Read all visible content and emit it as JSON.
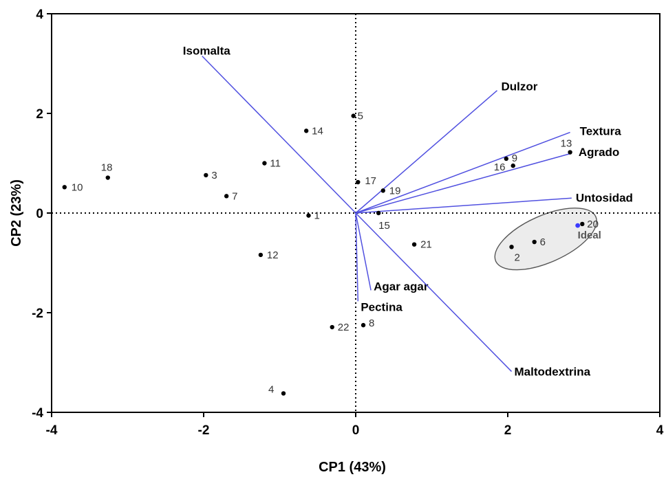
{
  "chart_data": {
    "type": "scatter",
    "subtype": "biplot",
    "title": "",
    "xlabel": "CP1 (43%)",
    "ylabel": "CP2 (23%)",
    "xlim": [
      -4,
      4
    ],
    "ylim": [
      -4,
      4
    ],
    "xticks": [
      -4,
      -2,
      0,
      2,
      4
    ],
    "yticks": [
      -4,
      -2,
      0,
      2,
      4
    ],
    "grid": false,
    "zero_lines": "dotted",
    "vector_color": "#5050e0",
    "point_color": "#000000",
    "ideal_color": "#3a3aff",
    "ellipse_fill": "#ececec",
    "points": [
      {
        "label": "1",
        "x": -0.62,
        "y": -0.05
      },
      {
        "label": "2",
        "x": 2.05,
        "y": -0.68
      },
      {
        "label": "3",
        "x": -1.97,
        "y": 0.76
      },
      {
        "label": "4",
        "x": -0.95,
        "y": -3.62
      },
      {
        "label": "5",
        "x": -0.03,
        "y": 1.95
      },
      {
        "label": "6",
        "x": 2.35,
        "y": -0.58
      },
      {
        "label": "7",
        "x": -1.7,
        "y": 0.34
      },
      {
        "label": "8",
        "x": 0.1,
        "y": -2.25
      },
      {
        "label": "9",
        "x": 1.98,
        "y": 1.09
      },
      {
        "label": "10",
        "x": -3.83,
        "y": 0.52
      },
      {
        "label": "11",
        "x": -1.2,
        "y": 1.0
      },
      {
        "label": "12",
        "x": -1.25,
        "y": -0.84
      },
      {
        "label": "13",
        "x": 2.82,
        "y": 1.22
      },
      {
        "label": "14",
        "x": -0.65,
        "y": 1.65
      },
      {
        "label": "15",
        "x": 0.3,
        "y": 0.0
      },
      {
        "label": "16",
        "x": 2.07,
        "y": 0.95
      },
      {
        "label": "17",
        "x": 0.03,
        "y": 0.62
      },
      {
        "label": "18",
        "x": -3.26,
        "y": 0.71
      },
      {
        "label": "19",
        "x": 0.36,
        "y": 0.45
      },
      {
        "label": "20",
        "x": 2.98,
        "y": -0.22
      },
      {
        "label": "21",
        "x": 0.77,
        "y": -0.63
      },
      {
        "label": "22",
        "x": -0.31,
        "y": -2.29
      }
    ],
    "ideal": {
      "label": "Ideal",
      "x": 2.92,
      "y": -0.25
    },
    "ideal_region": {
      "cx": 2.5,
      "cy": -0.52,
      "rx": 0.72,
      "ry": 0.47,
      "angle_deg": -24
    },
    "vectors": [
      {
        "name": "Isomalta",
        "x": -2.02,
        "y": 3.15
      },
      {
        "name": "Dulzor",
        "x": 1.86,
        "y": 2.46
      },
      {
        "name": "Textura",
        "x": 2.82,
        "y": 1.62
      },
      {
        "name": "Agrado",
        "x": 2.84,
        "y": 1.2
      },
      {
        "name": "Untosidad",
        "x": 2.84,
        "y": 0.3
      },
      {
        "name": "Agar agar",
        "x": 0.2,
        "y": -1.55
      },
      {
        "name": "Pectina",
        "x": 0.03,
        "y": -1.77
      },
      {
        "name": "Maltodextrina",
        "x": 2.05,
        "y": -3.18
      }
    ]
  }
}
